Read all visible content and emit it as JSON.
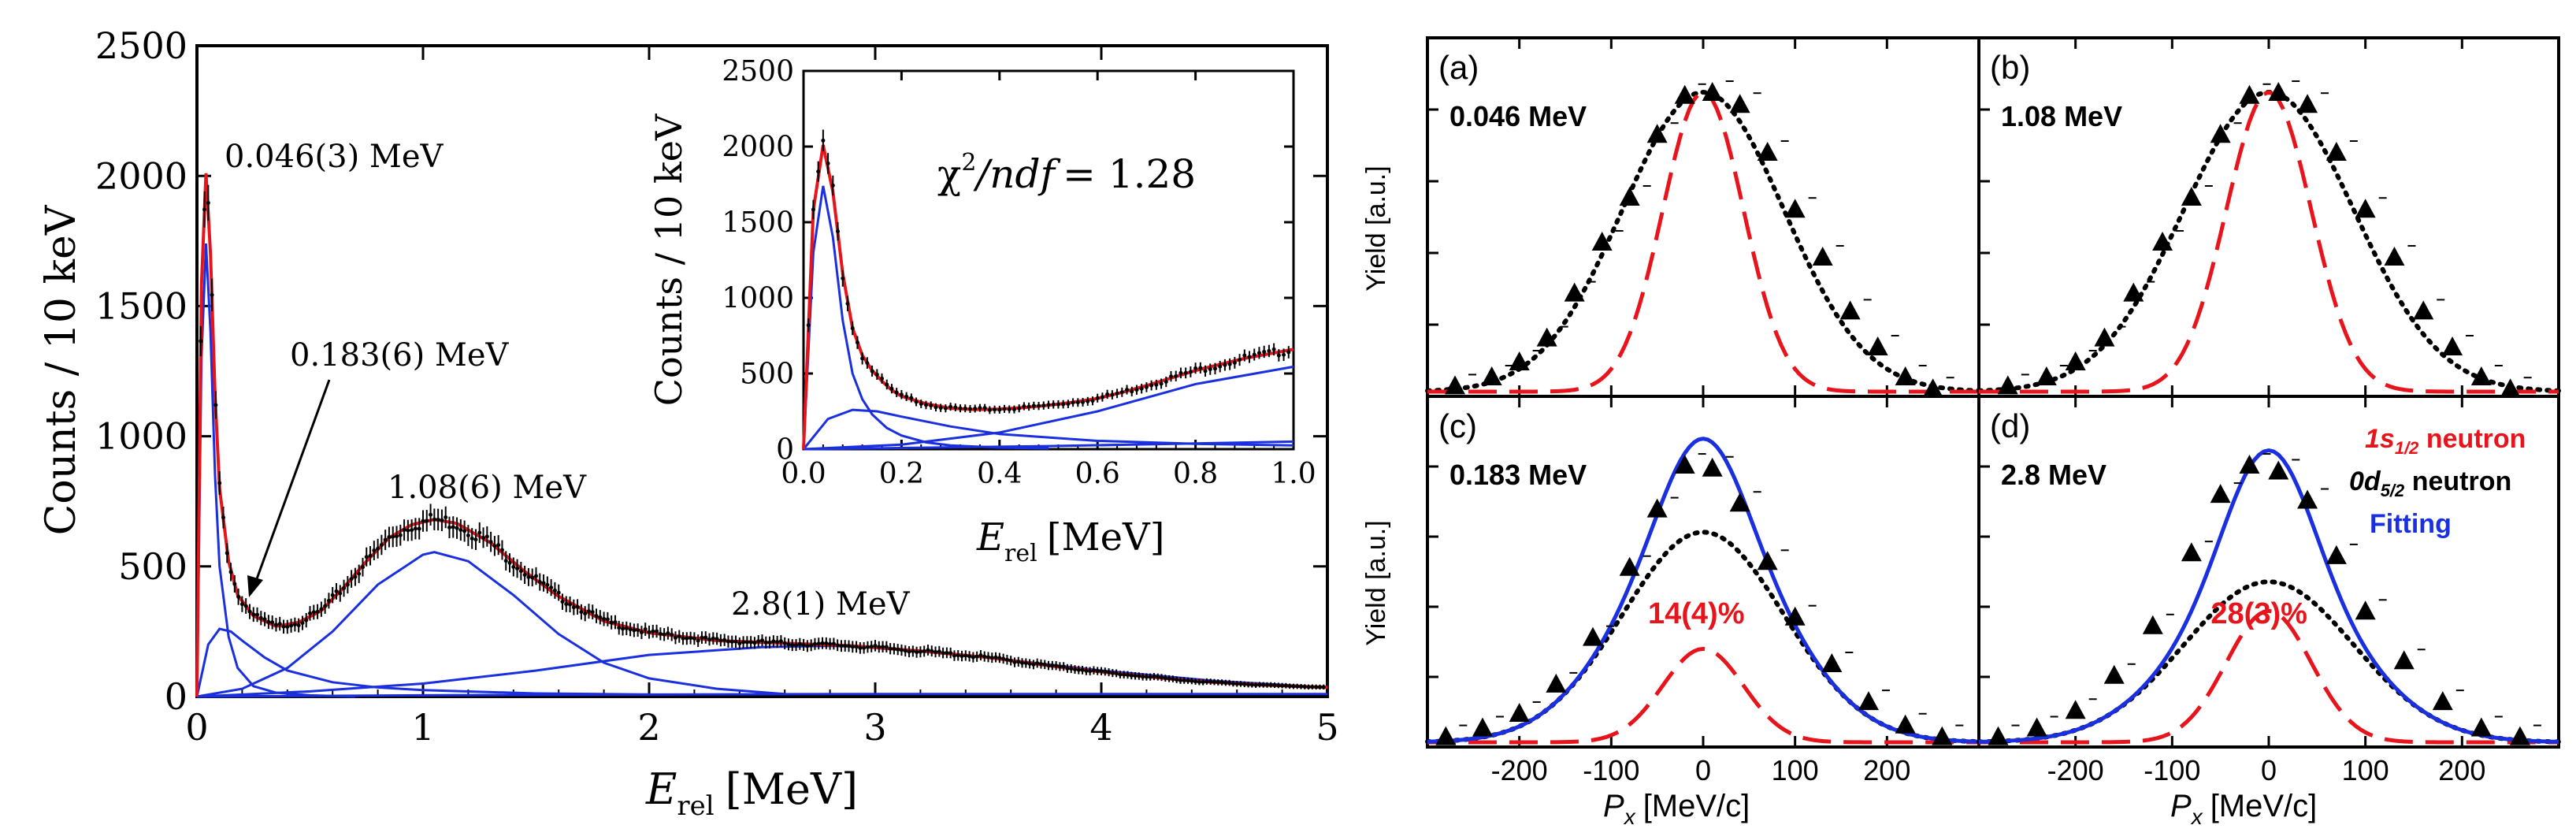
{
  "colors": {
    "data": "#000000",
    "total_fit": "#e8141b",
    "component": "#1a2fe0",
    "s_wave": "#e8141b",
    "d_wave": "#000000",
    "fitting": "#1a2fe0"
  },
  "chart_data": [
    {
      "id": "spectrum",
      "type": "line",
      "ylabel": "Counts / 10 keV",
      "xlabel_main": "E",
      "xlabel_sub": "rel",
      "xlabel_unit": "[MeV]",
      "xlim": [
        0,
        5
      ],
      "ylim": [
        0,
        2500
      ],
      "x_ticks": [
        "0",
        "1",
        "2",
        "3",
        "4",
        "5"
      ],
      "y_ticks": [
        "0",
        "500",
        "1000",
        "1500",
        "2000",
        "2500"
      ],
      "peaks": [
        {
          "label": "0.046(3) MeV",
          "energy": 0.046
        },
        {
          "label": "0.183(6) MeV",
          "energy": 0.183
        },
        {
          "label": "1.08(6) MeV",
          "energy": 1.08
        },
        {
          "label": "2.8(1) MeV",
          "energy": 2.8
        }
      ],
      "series": [
        {
          "name": "Resonance 0.046 MeV",
          "color": "blue",
          "x": [
            0,
            0.02,
            0.04,
            0.06,
            0.08,
            0.1,
            0.14,
            0.18,
            0.25,
            0.35,
            0.5,
            0.7
          ],
          "y": [
            0,
            1300,
            1740,
            1400,
            850,
            500,
            230,
            110,
            40,
            15,
            5,
            0
          ]
        },
        {
          "name": "Resonance 0.183 MeV",
          "color": "blue",
          "x": [
            0,
            0.05,
            0.1,
            0.15,
            0.2,
            0.3,
            0.4,
            0.6,
            0.8,
            1.0,
            1.5,
            2.0
          ],
          "y": [
            0,
            200,
            260,
            250,
            215,
            150,
            100,
            55,
            35,
            25,
            12,
            8
          ]
        },
        {
          "name": "Resonance 1.08 MeV",
          "color": "blue",
          "x": [
            0,
            0.2,
            0.4,
            0.6,
            0.8,
            1.0,
            1.05,
            1.2,
            1.4,
            1.6,
            1.8,
            2.0,
            2.3,
            2.6
          ],
          "y": [
            0,
            30,
            110,
            250,
            430,
            545,
            555,
            520,
            390,
            240,
            130,
            70,
            30,
            10
          ]
        },
        {
          "name": "Resonance 2.8 MeV",
          "color": "blue",
          "x": [
            0,
            0.5,
            1,
            1.5,
            2,
            2.5,
            2.8,
            3,
            3.5,
            4,
            4.5,
            5
          ],
          "y": [
            0,
            20,
            50,
            100,
            160,
            190,
            195,
            190,
            150,
            100,
            60,
            35
          ]
        },
        {
          "name": "Non-resonant",
          "color": "blue",
          "x": [
            0,
            1,
            2,
            3,
            4,
            5
          ],
          "y": [
            0,
            5,
            8,
            10,
            10,
            10
          ]
        },
        {
          "name": "Total fit",
          "color": "red",
          "x": [
            0,
            0.02,
            0.04,
            0.06,
            0.08,
            0.1,
            0.14,
            0.18,
            0.25,
            0.35,
            0.45,
            0.55,
            0.65,
            0.75,
            0.85,
            0.95,
            1.05,
            1.15,
            1.3,
            1.45,
            1.6,
            1.8,
            2.0,
            2.3,
            2.6,
            2.9,
            3.2,
            3.5,
            3.8,
            4.1,
            4.4,
            4.7,
            5.0
          ],
          "y": [
            0,
            1580,
            2010,
            1700,
            1160,
            800,
            520,
            390,
            310,
            270,
            285,
            330,
            420,
            520,
            610,
            660,
            680,
            665,
            590,
            480,
            385,
            290,
            245,
            215,
            205,
            195,
            175,
            150,
            115,
            85,
            60,
            45,
            35
          ]
        }
      ]
    },
    {
      "id": "inset",
      "type": "line",
      "ylabel": "Counts / 10 keV",
      "xlabel_main": "E",
      "xlabel_sub": "rel",
      "xlabel_unit": "[MeV]",
      "xlim": [
        0,
        1
      ],
      "ylim": [
        0,
        2500
      ],
      "x_ticks": [
        "0.0",
        "0.2",
        "0.4",
        "0.6",
        "0.8",
        "1.0"
      ],
      "y_ticks": [
        "0",
        "500",
        "1000",
        "1500",
        "2000",
        "2500"
      ],
      "annotation_chi": "χ",
      "annotation_sup": "2",
      "annotation_ndf": "/ndf",
      "annotation_value": "= 1.28",
      "series": [
        {
          "name": "Resonance 0.046 MeV",
          "color": "blue",
          "x": [
            0,
            0.02,
            0.04,
            0.06,
            0.08,
            0.1,
            0.12,
            0.14,
            0.17,
            0.2,
            0.25,
            0.3,
            0.4,
            0.5
          ],
          "y": [
            0,
            1300,
            1740,
            1400,
            850,
            500,
            330,
            230,
            140,
            90,
            45,
            25,
            10,
            5
          ]
        },
        {
          "name": "Resonance 0.183 MeV",
          "color": "blue",
          "x": [
            0,
            0.05,
            0.1,
            0.15,
            0.2,
            0.3,
            0.4,
            0.6,
            0.8,
            1.0
          ],
          "y": [
            0,
            200,
            260,
            250,
            215,
            150,
            100,
            55,
            35,
            25
          ]
        },
        {
          "name": "Resonance 1.08 MeV",
          "color": "blue",
          "x": [
            0,
            0.2,
            0.4,
            0.6,
            0.8,
            1.0
          ],
          "y": [
            0,
            30,
            110,
            250,
            430,
            545
          ]
        },
        {
          "name": "Non-resonant",
          "color": "blue",
          "x": [
            0,
            0.5,
            1.0
          ],
          "y": [
            0,
            20,
            50
          ]
        },
        {
          "name": "Total fit",
          "color": "red",
          "x": [
            0,
            0.02,
            0.04,
            0.06,
            0.08,
            0.1,
            0.12,
            0.14,
            0.16,
            0.18,
            0.2,
            0.25,
            0.3,
            0.35,
            0.4,
            0.45,
            0.5,
            0.55,
            0.6,
            0.65,
            0.7,
            0.75,
            0.8,
            0.85,
            0.9,
            0.95,
            1.0
          ],
          "y": [
            0,
            1580,
            2010,
            1700,
            1160,
            800,
            620,
            520,
            450,
            390,
            350,
            300,
            270,
            262,
            265,
            275,
            290,
            310,
            335,
            375,
            420,
            470,
            520,
            560,
            600,
            630,
            660
          ]
        }
      ]
    },
    {
      "id": "momentum",
      "type": "line",
      "panels": [
        {
          "tag": "(a)",
          "energy_label": "0.046 MeV",
          "peak_s": 1.0,
          "peak_d": 1.0,
          "fit": false,
          "fraction": "",
          "points_x": [
            -270,
            -230,
            -200,
            -170,
            -140,
            -110,
            -80,
            -50,
            -20,
            10,
            40,
            70,
            100,
            130,
            160,
            190,
            220,
            250
          ],
          "points_y": [
            0.02,
            0.05,
            0.1,
            0.18,
            0.33,
            0.5,
            0.65,
            0.86,
            0.99,
            1.0,
            0.96,
            0.8,
            0.61,
            0.45,
            0.27,
            0.15,
            0.05,
            0.01
          ]
        },
        {
          "tag": "(b)",
          "energy_label": "1.08 MeV",
          "peak_s": 1.0,
          "peak_d": 1.0,
          "fit": false,
          "fraction": "",
          "points_x": [
            -270,
            -230,
            -200,
            -170,
            -140,
            -110,
            -80,
            -50,
            -20,
            10,
            40,
            70,
            100,
            130,
            160,
            190,
            220,
            250
          ],
          "points_y": [
            0.02,
            0.05,
            0.1,
            0.18,
            0.33,
            0.5,
            0.65,
            0.86,
            0.99,
            1.0,
            0.96,
            0.8,
            0.61,
            0.45,
            0.27,
            0.15,
            0.05,
            0.01
          ]
        },
        {
          "tag": "(c)",
          "energy_label": "0.183 MeV",
          "peak_s": 0.32,
          "peak_d": 0.72,
          "fit": true,
          "fraction": "14(4)%",
          "points_x": [
            -280,
            -240,
            -200,
            -160,
            -120,
            -80,
            -50,
            -20,
            10,
            40,
            70,
            100,
            140,
            180,
            220,
            260
          ],
          "points_y": [
            0.02,
            0.05,
            0.1,
            0.2,
            0.36,
            0.6,
            0.8,
            0.95,
            0.94,
            0.82,
            0.62,
            0.43,
            0.27,
            0.14,
            0.06,
            0.02
          ]
        },
        {
          "tag": "(d)",
          "energy_label": "2.8 MeV",
          "peak_s": 0.45,
          "peak_d": 0.55,
          "fit": true,
          "fraction": "28(3)%",
          "points_x": [
            -280,
            -240,
            -200,
            -160,
            -120,
            -80,
            -50,
            -20,
            10,
            40,
            70,
            100,
            140,
            180,
            220,
            260
          ],
          "points_y": [
            0.02,
            0.05,
            0.11,
            0.23,
            0.4,
            0.65,
            0.85,
            0.95,
            0.93,
            0.83,
            0.64,
            0.45,
            0.28,
            0.14,
            0.05,
            0.02
          ]
        }
      ],
      "xlim": [
        -300,
        300
      ],
      "x_ticks": [
        "-200",
        "-100",
        "0",
        "100",
        "200"
      ],
      "x_tick_values": [
        -200,
        -100,
        0,
        100,
        200
      ],
      "ylabel": "Yield [a.u.]",
      "xlabel_main": "P",
      "xlabel_sub": "x",
      "xlabel_unit": "[MeV/c]",
      "legend": [
        {
          "main": "1s",
          "sub": "1/2",
          "rest": " neutron",
          "key": "s_wave"
        },
        {
          "main": "0d",
          "sub": "5/2",
          "rest": " neutron",
          "key": "d_wave"
        },
        {
          "main": "Fitting",
          "sub": "",
          "rest": "",
          "key": "fitting"
        }
      ]
    }
  ]
}
